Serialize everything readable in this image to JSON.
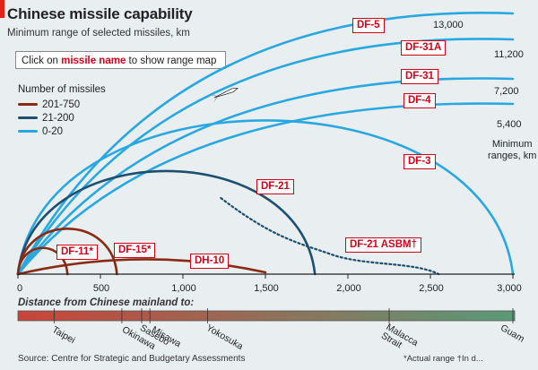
{
  "header": {
    "title": "Chinese missile capability",
    "subtitle": "Minimum range of selected missiles, km"
  },
  "instruction": {
    "prefix": "Click on ",
    "highlight": "missile name",
    "suffix": " to show range map"
  },
  "legend": {
    "title": "Number of missiles",
    "items": [
      {
        "label": "201-750",
        "color": "#8b2a12"
      },
      {
        "label": "21-200",
        "color": "#1d4f6e"
      },
      {
        "label": "0-20",
        "color": "#29a8e0"
      }
    ]
  },
  "chart_data": {
    "type": "line",
    "title": "Chinese missile capability",
    "subtitle": "Minimum range of selected missiles, km",
    "xlabel": "",
    "ylabel": "Minimum ranges, km",
    "xlim": [
      0,
      3000
    ],
    "x_ticks": [
      "0",
      "500",
      "1,000",
      "1,500",
      "2,000",
      "2,500",
      "3,000"
    ],
    "x_tick_values": [
      0,
      500,
      1000,
      1500,
      2000,
      2500,
      3000
    ],
    "grid": false,
    "legend_position": "left",
    "series": [
      {
        "name": "DF-5",
        "range_km": 13000,
        "range_label": "13,000",
        "group": "0-20"
      },
      {
        "name": "DF-31A",
        "range_km": 11200,
        "range_label": "11,200",
        "group": "0-20"
      },
      {
        "name": "DF-31",
        "range_km": 7200,
        "range_label": "7,200",
        "group": "0-20"
      },
      {
        "name": "DF-4",
        "range_km": 5400,
        "range_label": "5,400",
        "group": "0-20"
      },
      {
        "name": "DF-3",
        "range_km": 3000,
        "range_label": "",
        "group": "0-20"
      },
      {
        "name": "DF-21",
        "range_km": 1800,
        "range_label": "",
        "group": "21-200"
      },
      {
        "name": "DF-21 ASBM†",
        "range_km": 2550,
        "range_label": "",
        "group": "21-200",
        "dotted": true
      },
      {
        "name": "DF-15*",
        "range_km": 600,
        "range_label": "",
        "group": "201-750"
      },
      {
        "name": "DF-11*",
        "range_km": 300,
        "range_label": "",
        "group": "201-750"
      },
      {
        "name": "DH-10",
        "range_km": 1500,
        "range_label": "",
        "group": "201-750"
      }
    ],
    "min_range_label": "Minimum\nranges, km",
    "axis_min_label": "Minimum",
    "axis_unit_label": "ranges, km"
  },
  "distance": {
    "title": "Distance from Chinese mainland to:",
    "places": [
      {
        "name": "Taipei",
        "km": 220
      },
      {
        "name": "Okinawa",
        "km": 630
      },
      {
        "name": "Sasebo",
        "km": 750
      },
      {
        "name": "Misawa",
        "km": 800
      },
      {
        "name": "Yokosuka",
        "km": 1150
      },
      {
        "name": "Malacca Strait",
        "km": 2250
      },
      {
        "name": "Guam",
        "km": 3000
      }
    ],
    "malacca_line1": "Malacca",
    "malacca_line2": "Strait"
  },
  "footer": {
    "source": "Source: Centre for Strategic and Budgetary Assessments",
    "footnote": "*Actual range   †In d..."
  },
  "colors": {
    "red_accent": "#e2231a",
    "label_red": "#d0021b",
    "gradient_start": "#c8443a",
    "gradient_end": "#5a9a78"
  }
}
